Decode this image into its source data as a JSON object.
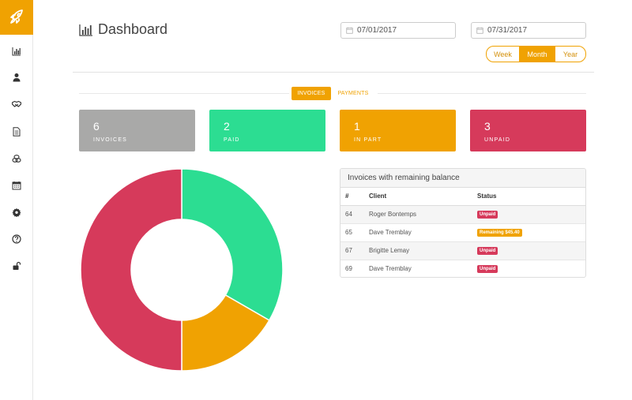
{
  "page": {
    "title": "Dashboard"
  },
  "date_range": {
    "start": "07/01/2017",
    "end": "07/31/2017"
  },
  "period": {
    "options": [
      "Week",
      "Month",
      "Year"
    ],
    "selected": "Month"
  },
  "tabs": [
    {
      "label": "INVOICES",
      "active": true
    },
    {
      "label": "PAYMENTS",
      "active": false
    }
  ],
  "stat_cards": [
    {
      "count": "6",
      "label": "INVOICES",
      "color": "#a9a9a8"
    },
    {
      "count": "2",
      "label": "PAID",
      "color": "#2cdd92"
    },
    {
      "count": "1",
      "label": "IN PART",
      "color": "#f0a202"
    },
    {
      "count": "3",
      "label": "UNPAID",
      "color": "#d63a5b"
    }
  ],
  "sidebar": {
    "icons": [
      "rocket-logo-icon",
      "bar-chart-icon",
      "user-icon",
      "handshake-icon",
      "document-icon",
      "coins-icon",
      "calendar-icon",
      "gear-icon",
      "help-icon",
      "unlock-icon"
    ]
  },
  "chart_data": {
    "type": "pie",
    "categories": [
      "Paid",
      "In Part",
      "Unpaid"
    ],
    "values": [
      2,
      1,
      3
    ],
    "colors": [
      "#2cdd92",
      "#f0a202",
      "#d63a5b"
    ],
    "donut": true
  },
  "balance_table": {
    "title": "Invoices with remaining balance",
    "columns": [
      "#",
      "Client",
      "Status"
    ],
    "rows": [
      {
        "id": "64",
        "client": "Roger Bontemps",
        "status": "Unpaid",
        "status_color": "#d63a5b"
      },
      {
        "id": "65",
        "client": "Dave Tremblay",
        "status": "Remaining $45.40",
        "status_color": "#f0a202"
      },
      {
        "id": "67",
        "client": "Brigitte Lemay",
        "status": "Unpaid",
        "status_color": "#d63a5b"
      },
      {
        "id": "69",
        "client": "Dave Tremblay",
        "status": "Unpaid",
        "status_color": "#d63a5b"
      }
    ]
  }
}
